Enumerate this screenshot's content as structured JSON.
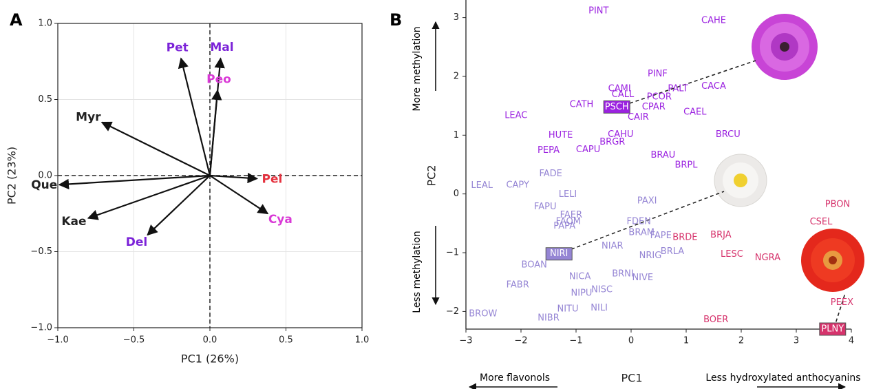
{
  "chart_data": [
    {
      "type": "biplot",
      "panel_label": "A",
      "xlabel": "PC1 (26%)",
      "ylabel": "PC2 (23%)",
      "xlim": [
        -1,
        1
      ],
      "ylim": [
        -1,
        1
      ],
      "grid": true,
      "xticks": [
        {
          "value": -1,
          "label": "−1.0"
        },
        {
          "value": -0.5,
          "label": "−0.5"
        },
        {
          "value": 0,
          "label": "0.0"
        },
        {
          "value": 0.5,
          "label": "0.5"
        },
        {
          "value": 1,
          "label": "1.0"
        }
      ],
      "yticks": [
        {
          "value": -1,
          "label": "−1.0"
        },
        {
          "value": -0.5,
          "label": "−0.5"
        },
        {
          "value": 0,
          "label": "0.0"
        },
        {
          "value": 0.5,
          "label": "0.5"
        },
        {
          "value": 1,
          "label": "1.0"
        }
      ],
      "labels": [
        "Pet",
        "Mal",
        "Peo",
        "Myr",
        "Pel",
        "Cya",
        "Que",
        "Kae",
        "Del"
      ],
      "x": [
        -0.19,
        0.07,
        0.05,
        -0.71,
        0.31,
        0.38,
        -0.99,
        -0.8,
        -0.41
      ],
      "y": [
        0.77,
        0.77,
        0.56,
        0.35,
        -0.02,
        -0.25,
        -0.06,
        -0.28,
        -0.39
      ],
      "colors": [
        "#7b22d8",
        "#7b22d8",
        "#d93ad6",
        "#222222",
        "#e5323f",
        "#d93ad6",
        "#222222",
        "#222222",
        "#7b22d8"
      ]
    },
    {
      "type": "scatter",
      "panel_label": "B",
      "xlabel": "PC1",
      "ylabel": "PC2",
      "xlim": [
        -3,
        4
      ],
      "ylim": [
        -2.3,
        3.3
      ],
      "xticks": [
        {
          "value": -3,
          "label": "−3"
        },
        {
          "value": -2,
          "label": "−2"
        },
        {
          "value": -1,
          "label": "−1"
        },
        0,
        1,
        2,
        3,
        4
      ],
      "yticks": [
        {
          "value": -2,
          "label": "−2"
        },
        {
          "value": -1,
          "label": "−1"
        },
        0,
        1,
        2,
        3
      ],
      "annotations": {
        "top": "More methylation",
        "bottom": "Less methylation",
        "left": "More flavonols",
        "right": "Less hydroxylated anthocyanins"
      },
      "series": [
        {
          "color": "#9b22e0",
          "highlighted": 9,
          "labels": [
            "PINT",
            "CAHE",
            "PINF",
            "PALT",
            "CAMI",
            "CACA",
            "CALL",
            "PCOR",
            "CATH",
            "PSCH",
            "CPAR",
            "CAIR",
            "CAEL",
            "LEAC",
            "BRCU",
            "HUTE",
            "CAHU",
            "BRGR",
            "PEPA",
            "CAPU",
            "BRAU",
            "BRPL"
          ],
          "x": [
            -0.59,
            1.5,
            0.48,
            0.85,
            -0.21,
            1.5,
            -0.15,
            0.51,
            -0.9,
            -0.26,
            0.41,
            0.13,
            1.16,
            -2.09,
            1.76,
            -1.28,
            -0.19,
            -0.34,
            -1.5,
            -0.78,
            0.58,
            1.0
          ],
          "y": [
            3.11,
            2.95,
            2.04,
            1.79,
            1.79,
            1.83,
            1.69,
            1.65,
            1.52,
            1.48,
            1.48,
            1.3,
            1.39,
            1.33,
            1.01,
            1.0,
            1.01,
            0.88,
            0.74,
            0.75,
            0.66,
            0.49
          ]
        },
        {
          "color": "#9585d4",
          "highlighted": 13,
          "labels": [
            "FADE",
            "LEAL",
            "CAPY",
            "LELI",
            "PAXI",
            "FAPU",
            "FAER",
            "FDEN",
            "FAOM",
            "PAPA",
            "BRAM",
            "FAPE",
            "NIAR",
            "NIRI",
            "NRIG",
            "BRLA",
            "BOAN",
            "BRNI",
            "NIVE",
            "NICA",
            "FABR",
            "NISC",
            "NIPU",
            "NITU",
            "NILI",
            "BROW",
            "NIBR"
          ],
          "x": [
            -1.46,
            -2.71,
            -2.06,
            -1.15,
            0.29,
            -1.56,
            -1.09,
            0.14,
            -1.14,
            -1.21,
            0.19,
            0.54,
            -0.34,
            -1.31,
            0.35,
            0.75,
            -1.76,
            -0.15,
            0.21,
            -0.93,
            -2.06,
            -0.53,
            -0.9,
            -1.15,
            -0.58,
            -2.69,
            -1.5
          ],
          "y": [
            0.34,
            0.14,
            0.15,
            -0.01,
            -0.12,
            -0.22,
            -0.36,
            -0.47,
            -0.47,
            -0.55,
            -0.66,
            -0.71,
            -0.89,
            -1.02,
            -1.05,
            -0.98,
            -1.21,
            -1.36,
            -1.43,
            -1.41,
            -1.55,
            -1.63,
            -1.69,
            -1.96,
            -1.94,
            -2.04,
            -2.11
          ]
        },
        {
          "color": "#d6336c",
          "highlighted": 8,
          "labels": [
            "BRDE",
            "BRJA",
            "LESC",
            "NGRA",
            "PBON",
            "CSEL",
            "PEEX",
            "BOER",
            "PLNY"
          ],
          "x": [
            0.98,
            1.63,
            1.83,
            2.48,
            3.75,
            3.45,
            3.83,
            1.54,
            3.66
          ],
          "y": [
            -0.74,
            -0.7,
            -1.03,
            -1.09,
            -0.18,
            -0.48,
            -1.85,
            -2.14,
            -2.3
          ]
        }
      ]
    }
  ]
}
